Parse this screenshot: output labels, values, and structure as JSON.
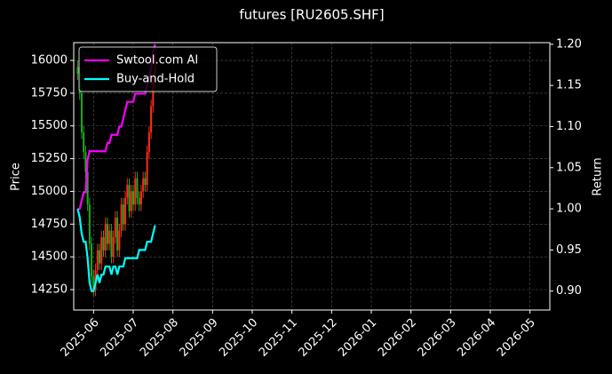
{
  "chart_data": {
    "type": "candlestick",
    "title": "futures [RU2605.SHF]",
    "ylabel": "Price",
    "y2label": "Return",
    "x": [
      -0.4,
      -0.35,
      -0.3,
      -0.25,
      -0.2,
      -0.15,
      -0.1,
      -0.05,
      0,
      0.05,
      0.1,
      0.15,
      0.2,
      0.25,
      0.3,
      0.35,
      0.4,
      0.45,
      0.5,
      0.55,
      0.6,
      0.65,
      0.7,
      0.75,
      0.8,
      0.85,
      0.9,
      0.95,
      1,
      1.05,
      1.1,
      1.15,
      1.2,
      1.25,
      1.3,
      1.35,
      1.4,
      1.45,
      1.5,
      1.55
    ],
    "ohlc": [
      [
        15950,
        16000,
        15850,
        15900
      ],
      [
        15900,
        15950,
        15700,
        15750
      ],
      [
        15750,
        15800,
        15400,
        15450
      ],
      [
        15450,
        15500,
        15250,
        15300
      ],
      [
        15300,
        15350,
        15100,
        15150
      ],
      [
        15150,
        15200,
        14850,
        14900
      ],
      [
        14900,
        14950,
        14550,
        14600
      ],
      [
        14600,
        14650,
        14300,
        14350
      ],
      [
        14350,
        14400,
        14200,
        14250
      ],
      [
        14250,
        14450,
        14200,
        14400
      ],
      [
        14400,
        14600,
        14350,
        14550
      ],
      [
        14550,
        14600,
        14400,
        14450
      ],
      [
        14450,
        14700,
        14400,
        14650
      ],
      [
        14650,
        14700,
        14500,
        14550
      ],
      [
        14550,
        14800,
        14500,
        14750
      ],
      [
        14750,
        14800,
        14550,
        14600
      ],
      [
        14600,
        14750,
        14550,
        14700
      ],
      [
        14700,
        14750,
        14450,
        14500
      ],
      [
        14500,
        14700,
        14450,
        14650
      ],
      [
        14650,
        14850,
        14600,
        14800
      ],
      [
        14800,
        14850,
        14500,
        14550
      ],
      [
        14550,
        14750,
        14500,
        14700
      ],
      [
        14700,
        14950,
        14650,
        14900
      ],
      [
        14900,
        14950,
        14700,
        14750
      ],
      [
        14750,
        15000,
        14700,
        14950
      ],
      [
        14950,
        15100,
        14900,
        15050
      ],
      [
        15050,
        15100,
        14800,
        14850
      ],
      [
        14850,
        15050,
        14800,
        15000
      ],
      [
        15000,
        15050,
        14850,
        14900
      ],
      [
        14900,
        15150,
        14850,
        15100
      ],
      [
        15100,
        15150,
        14900,
        14950
      ],
      [
        14950,
        15000,
        14850,
        14900
      ],
      [
        14900,
        15050,
        14850,
        15000
      ],
      [
        15000,
        15150,
        14950,
        15100
      ],
      [
        15100,
        15150,
        15000,
        15050
      ],
      [
        15050,
        15350,
        15000,
        15300
      ],
      [
        15300,
        15500,
        15250,
        15450
      ],
      [
        15450,
        15700,
        15400,
        15650
      ],
      [
        15650,
        15900,
        15600,
        15850
      ],
      [
        15850,
        16050,
        15800,
        16000
      ]
    ],
    "up_color": "#ff2a1a",
    "down_color": "#1faa1f",
    "series": [
      {
        "name": "Swtool.com AI",
        "color": "#ff00ff",
        "axis": "y2",
        "values": [
          1.0,
          1.0,
          1.01,
          1.02,
          1.02,
          1.06,
          1.07,
          1.07,
          1.07,
          1.07,
          1.07,
          1.07,
          1.07,
          1.07,
          1.07,
          1.08,
          1.08,
          1.09,
          1.09,
          1.09,
          1.09,
          1.1,
          1.1,
          1.11,
          1.12,
          1.13,
          1.13,
          1.13,
          1.13,
          1.14,
          1.14,
          1.14,
          1.14,
          1.14,
          1.14,
          1.15,
          1.16,
          1.17,
          1.19,
          1.2
        ]
      },
      {
        "name": "Buy-and-Hold",
        "color": "#00ffff",
        "axis": "y2",
        "values": [
          1.0,
          0.99,
          0.97,
          0.96,
          0.96,
          0.94,
          0.91,
          0.9,
          0.9,
          0.91,
          0.92,
          0.91,
          0.92,
          0.92,
          0.93,
          0.93,
          0.93,
          0.92,
          0.93,
          0.93,
          0.92,
          0.93,
          0.93,
          0.93,
          0.94,
          0.94,
          0.94,
          0.94,
          0.94,
          0.94,
          0.94,
          0.95,
          0.95,
          0.95,
          0.95,
          0.96,
          0.96,
          0.96,
          0.97,
          0.98
        ]
      }
    ],
    "xlim": [
      -0.5,
      11.5
    ],
    "xticks": [
      {
        "value": 0,
        "label": "2025-06"
      },
      {
        "value": 1,
        "label": "2025-07"
      },
      {
        "value": 2,
        "label": "2025-08"
      },
      {
        "value": 3,
        "label": "2025-09"
      },
      {
        "value": 4,
        "label": "2025-10"
      },
      {
        "value": 5,
        "label": "2025-11"
      },
      {
        "value": 6,
        "label": "2025-12"
      },
      {
        "value": 7,
        "label": "2026-01"
      },
      {
        "value": 8,
        "label": "2026-02"
      },
      {
        "value": 9,
        "label": "2026-03"
      },
      {
        "value": 10,
        "label": "2026-04"
      },
      {
        "value": 11,
        "label": "2026-05"
      }
    ],
    "ylim": [
      14094,
      16136
    ],
    "yticks": [
      14250,
      14500,
      14750,
      15000,
      15250,
      15500,
      15750,
      16000
    ],
    "y2lim": [
      0.877,
      1.202
    ],
    "y2ticks": [
      {
        "value": 0.9,
        "label": "0.90"
      },
      {
        "value": 0.95,
        "label": "0.95"
      },
      {
        "value": 1,
        "label": "1.00"
      },
      {
        "value": 1.05,
        "label": "1.05"
      },
      {
        "value": 1.1,
        "label": "1.10"
      },
      {
        "value": 1.15,
        "label": "1.15"
      },
      {
        "value": 1.2,
        "label": "1.20"
      }
    ],
    "grid": true,
    "legend": "upper left"
  }
}
